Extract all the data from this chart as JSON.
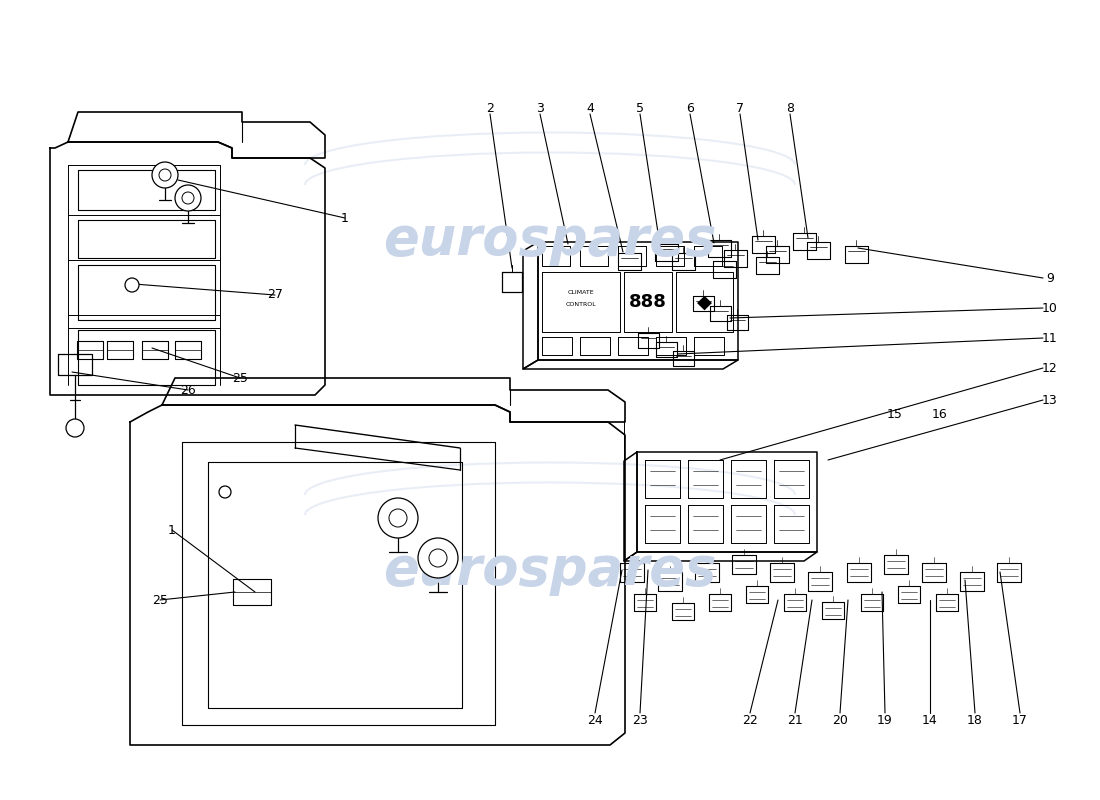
{
  "background_color": "#ffffff",
  "line_color": "#000000",
  "watermark_text": "eurospares",
  "watermark_color": "#c8d4e8",
  "watermark_alpha": 0.4,
  "part_labels_top": {
    "labels": [
      "2",
      "3",
      "4",
      "5",
      "6",
      "7",
      "8"
    ],
    "x": [
      490,
      540,
      590,
      640,
      690,
      740,
      790
    ],
    "y": [
      108,
      108,
      108,
      108,
      108,
      108,
      108
    ]
  },
  "part_labels_right": {
    "labels": [
      "9",
      "10",
      "11",
      "12",
      "13"
    ],
    "x": [
      1050,
      1050,
      1050,
      1050,
      1050
    ],
    "y": [
      278,
      308,
      338,
      368,
      400
    ]
  },
  "part_labels_bottom": {
    "labels": [
      "24",
      "23",
      "22",
      "21",
      "20",
      "19",
      "14",
      "18",
      "17"
    ],
    "x": [
      595,
      640,
      750,
      795,
      840,
      885,
      930,
      975,
      1020
    ],
    "y": [
      720,
      720,
      720,
      720,
      720,
      720,
      720,
      720,
      720
    ]
  },
  "part_labels_left1": {
    "labels": [
      "1",
      "27",
      "25",
      "26"
    ],
    "x": [
      345,
      275,
      240,
      188
    ],
    "y": [
      218,
      295,
      378,
      390
    ]
  },
  "part_labels_left2": {
    "labels": [
      "1",
      "25"
    ],
    "x": [
      172,
      160
    ],
    "y": [
      530,
      600
    ]
  },
  "part_labels_right2": {
    "labels": [
      "15",
      "16"
    ],
    "x": [
      895,
      940
    ],
    "y": [
      415,
      415
    ]
  }
}
